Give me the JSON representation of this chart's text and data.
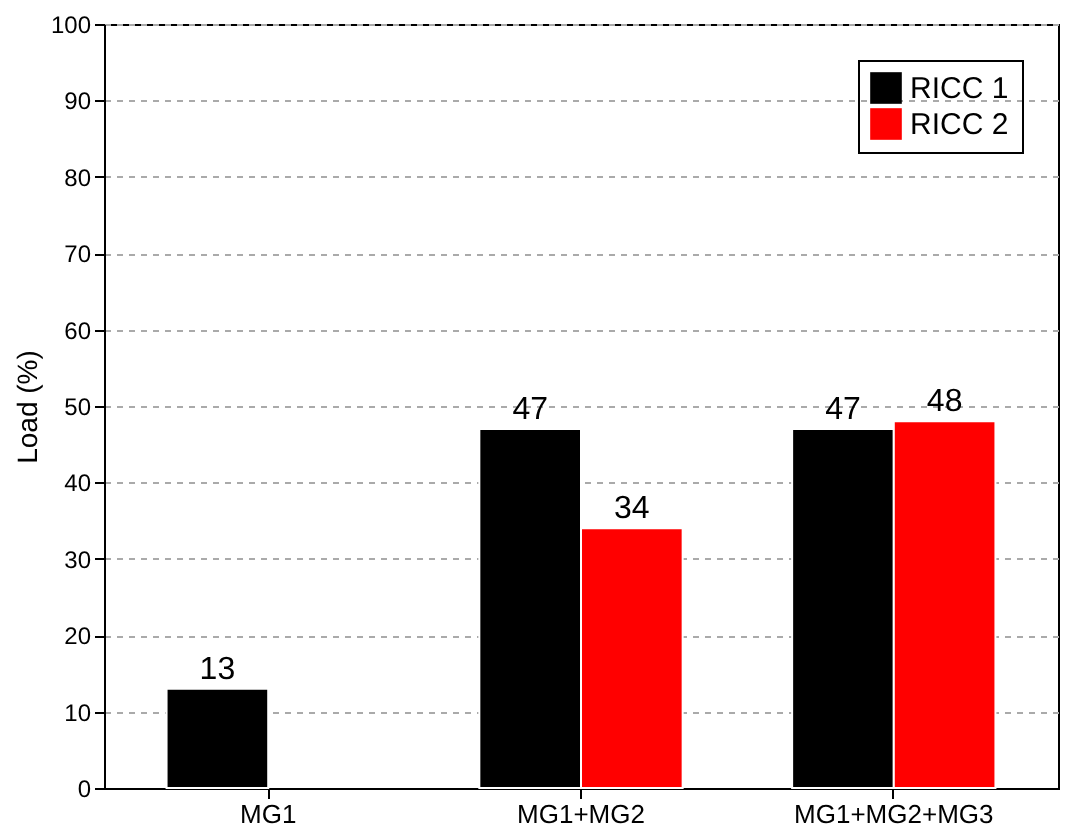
{
  "chart_data": {
    "type": "bar",
    "ylabel": "Load (%)",
    "categories": [
      "MG1",
      "MG1+MG2",
      "MG1+MG2+MG3"
    ],
    "series": [
      {
        "name": "RICC 1",
        "color": "#000000",
        "values": [
          13,
          47,
          47
        ]
      },
      {
        "name": "RICC 2",
        "color": "#ff0000",
        "values": [
          null,
          34,
          48
        ]
      }
    ],
    "ylim": [
      0,
      100
    ],
    "yticks": [
      0,
      10,
      20,
      30,
      40,
      50,
      60,
      70,
      80,
      90,
      100
    ],
    "grid": "y",
    "legend": "top right",
    "data_labels": true
  }
}
